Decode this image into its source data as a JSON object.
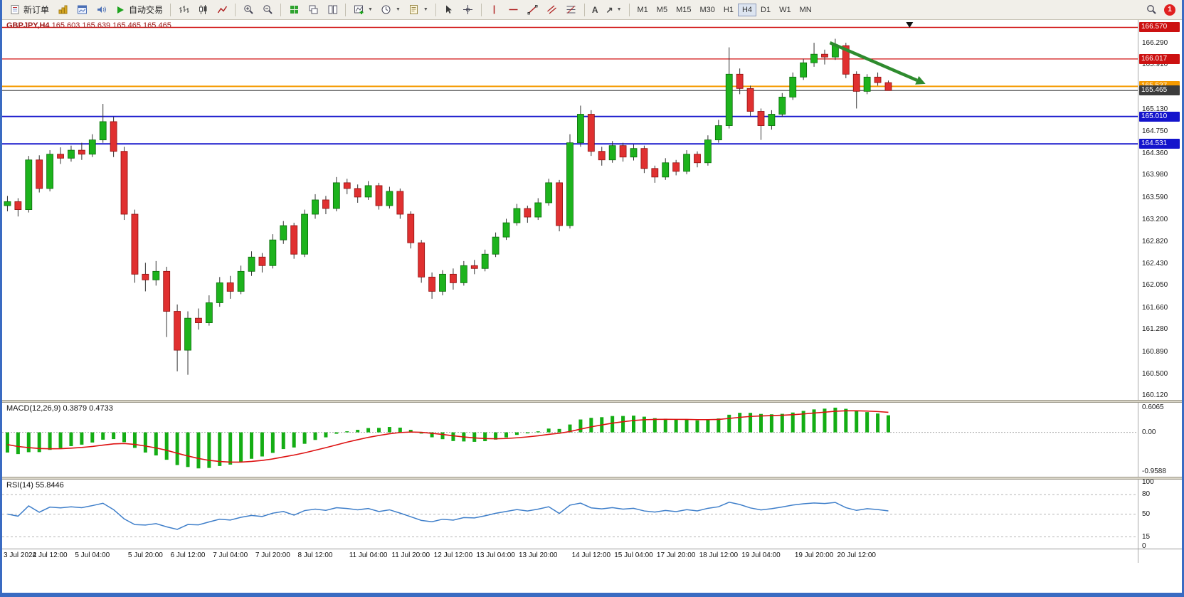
{
  "toolbar": {
    "new_order_label": "新订单",
    "autotrading_label": "自动交易",
    "timeframes": [
      "M1",
      "M5",
      "M15",
      "M30",
      "H1",
      "H4",
      "D1",
      "W1",
      "MN"
    ],
    "active_timeframe": "H4",
    "notification_count": "1"
  },
  "chart": {
    "symbol_period": "GBPJPY,H4",
    "ohlc_line": "165.603 165.639 165.465 165.465"
  },
  "chart_data": {
    "type": "candlestick",
    "symbol": "GBPJPY",
    "period": "H4",
    "ylim": [
      160.05,
      166.7
    ],
    "margin_slots": 23,
    "colors": {
      "up": "#1db31d",
      "up_stroke": "#0b6b0b",
      "down": "#e03030",
      "down_stroke": "#8f1010",
      "wick": "#333333"
    },
    "axis_ticks": [
      166.29,
      165.91,
      165.13,
      164.75,
      164.36,
      163.98,
      163.59,
      163.2,
      162.82,
      162.43,
      162.05,
      161.66,
      161.28,
      160.89,
      160.5,
      160.12
    ],
    "price_tags": [
      {
        "label": "166.570",
        "value": 166.57,
        "bg": "#cc1111"
      },
      {
        "label": "166.017",
        "value": 166.017,
        "bg": "#cc1111"
      },
      {
        "label": "165.537",
        "value": 165.537,
        "bg": "#f59a00"
      },
      {
        "label": "165.465",
        "value": 165.465,
        "bg": "#3c3c3c"
      },
      {
        "label": "165.010",
        "value": 165.01,
        "bg": "#1414cc"
      },
      {
        "label": "164.531",
        "value": 164.531,
        "bg": "#1414cc"
      }
    ],
    "hlines": [
      {
        "price": 166.57,
        "color": "#d01010",
        "width": 1.5
      },
      {
        "price": 166.017,
        "color": "#d01010",
        "width": 1.2
      },
      {
        "price": 165.537,
        "color": "#f59a00",
        "width": 2
      },
      {
        "price": 165.465,
        "color": "#3c3c3c",
        "width": 1.2
      },
      {
        "price": 165.01,
        "color": "#1414cc",
        "width": 1.8
      },
      {
        "price": 164.531,
        "color": "#1414cc",
        "width": 1.8
      }
    ],
    "trend_arrow": {
      "from_i": 77.5,
      "from_price": 166.3,
      "to_i": 86.5,
      "to_price": 165.58,
      "color": "#2e8b2e"
    },
    "top_marker": {
      "i": 85,
      "color": "#111111"
    },
    "candles": [
      [
        163.45,
        163.62,
        163.35,
        163.52
      ],
      [
        163.52,
        163.58,
        163.26,
        163.38
      ],
      [
        163.38,
        164.32,
        163.33,
        164.25
      ],
      [
        164.25,
        164.33,
        163.68,
        163.75
      ],
      [
        163.75,
        164.42,
        163.7,
        164.35
      ],
      [
        164.35,
        164.47,
        164.18,
        164.28
      ],
      [
        164.28,
        164.5,
        164.22,
        164.42
      ],
      [
        164.42,
        164.55,
        164.25,
        164.35
      ],
      [
        164.35,
        164.7,
        164.3,
        164.6
      ],
      [
        164.6,
        165.23,
        164.55,
        164.92
      ],
      [
        164.92,
        165.0,
        164.3,
        164.4
      ],
      [
        164.4,
        164.48,
        163.2,
        163.3
      ],
      [
        163.3,
        163.38,
        162.1,
        162.25
      ],
      [
        162.25,
        162.45,
        161.95,
        162.15
      ],
      [
        162.15,
        162.48,
        162.05,
        162.3
      ],
      [
        162.3,
        162.38,
        161.15,
        161.6
      ],
      [
        161.6,
        161.72,
        160.55,
        160.92
      ],
      [
        160.92,
        161.6,
        160.49,
        161.48
      ],
      [
        161.48,
        161.65,
        161.28,
        161.4
      ],
      [
        161.4,
        161.88,
        161.35,
        161.75
      ],
      [
        161.75,
        162.2,
        161.68,
        162.1
      ],
      [
        162.1,
        162.22,
        161.82,
        161.95
      ],
      [
        161.95,
        162.4,
        161.9,
        162.3
      ],
      [
        162.3,
        162.65,
        162.22,
        162.55
      ],
      [
        162.55,
        162.62,
        162.28,
        162.4
      ],
      [
        162.4,
        162.95,
        162.35,
        162.85
      ],
      [
        162.85,
        163.18,
        162.78,
        163.1
      ],
      [
        163.1,
        163.15,
        162.52,
        162.6
      ],
      [
        162.6,
        163.38,
        162.55,
        163.3
      ],
      [
        163.3,
        163.65,
        163.22,
        163.55
      ],
      [
        163.55,
        163.62,
        163.3,
        163.4
      ],
      [
        163.4,
        163.95,
        163.35,
        163.85
      ],
      [
        163.85,
        163.92,
        163.65,
        163.75
      ],
      [
        163.75,
        163.82,
        163.5,
        163.6
      ],
      [
        163.6,
        163.88,
        163.55,
        163.8
      ],
      [
        163.8,
        163.85,
        163.38,
        163.45
      ],
      [
        163.45,
        163.78,
        163.4,
        163.7
      ],
      [
        163.7,
        163.75,
        163.22,
        163.3
      ],
      [
        163.3,
        163.35,
        162.7,
        162.8
      ],
      [
        162.8,
        162.85,
        162.1,
        162.2
      ],
      [
        162.2,
        162.28,
        161.82,
        161.95
      ],
      [
        161.95,
        162.32,
        161.88,
        162.25
      ],
      [
        162.25,
        162.35,
        161.98,
        162.1
      ],
      [
        162.1,
        162.48,
        162.05,
        162.4
      ],
      [
        162.4,
        162.5,
        162.25,
        162.35
      ],
      [
        162.35,
        162.68,
        162.3,
        162.6
      ],
      [
        162.6,
        162.98,
        162.55,
        162.9
      ],
      [
        162.9,
        163.22,
        162.85,
        163.15
      ],
      [
        163.15,
        163.48,
        163.1,
        163.4
      ],
      [
        163.4,
        163.45,
        163.15,
        163.25
      ],
      [
        163.25,
        163.58,
        163.2,
        163.5
      ],
      [
        163.5,
        163.92,
        163.45,
        163.85
      ],
      [
        163.85,
        163.9,
        163.0,
        163.1
      ],
      [
        163.1,
        164.7,
        163.05,
        164.55
      ],
      [
        164.55,
        165.2,
        164.48,
        165.05
      ],
      [
        165.05,
        165.12,
        164.32,
        164.4
      ],
      [
        164.4,
        164.48,
        164.15,
        164.25
      ],
      [
        164.25,
        164.58,
        164.2,
        164.5
      ],
      [
        164.5,
        164.55,
        164.22,
        164.3
      ],
      [
        164.3,
        164.52,
        164.24,
        164.45
      ],
      [
        164.45,
        164.5,
        164.02,
        164.1
      ],
      [
        164.1,
        164.15,
        163.85,
        163.95
      ],
      [
        163.95,
        164.28,
        163.9,
        164.2
      ],
      [
        164.2,
        164.25,
        163.98,
        164.05
      ],
      [
        164.05,
        164.42,
        164.0,
        164.35
      ],
      [
        164.35,
        164.4,
        164.12,
        164.2
      ],
      [
        164.2,
        164.68,
        164.15,
        164.6
      ],
      [
        164.6,
        164.95,
        164.55,
        164.85
      ],
      [
        164.85,
        166.22,
        164.8,
        165.75
      ],
      [
        165.75,
        165.85,
        165.4,
        165.5
      ],
      [
        165.5,
        165.55,
        165.02,
        165.1
      ],
      [
        165.1,
        165.15,
        164.6,
        164.85
      ],
      [
        164.85,
        165.12,
        164.78,
        165.05
      ],
      [
        165.05,
        165.42,
        165.0,
        165.35
      ],
      [
        165.35,
        165.78,
        165.3,
        165.7
      ],
      [
        165.7,
        166.02,
        165.65,
        165.95
      ],
      [
        165.95,
        166.3,
        165.88,
        166.1
      ],
      [
        166.1,
        166.18,
        165.92,
        166.05
      ],
      [
        166.05,
        166.37,
        166.0,
        166.25
      ],
      [
        166.25,
        166.3,
        165.68,
        165.75
      ],
      [
        165.75,
        165.8,
        165.15,
        165.45
      ],
      [
        165.45,
        165.75,
        165.4,
        165.7
      ],
      [
        165.7,
        165.78,
        165.55,
        165.603
      ],
      [
        165.603,
        165.639,
        165.465,
        165.465
      ]
    ],
    "time_labels": [
      {
        "i": 0,
        "t": "3 Jul 2022"
      },
      {
        "i": 4,
        "t": "4 Jul 12:00"
      },
      {
        "i": 8,
        "t": "5 Jul 04:00"
      },
      {
        "i": 13,
        "t": "5 Jul 20:00"
      },
      {
        "i": 17,
        "t": "6 Jul 12:00"
      },
      {
        "i": 21,
        "t": "7 Jul 04:00"
      },
      {
        "i": 25,
        "t": "7 Jul 20:00"
      },
      {
        "i": 29,
        "t": "8 Jul 12:00"
      },
      {
        "i": 34,
        "t": "11 Jul 04:00"
      },
      {
        "i": 38,
        "t": "11 Jul 20:00"
      },
      {
        "i": 42,
        "t": "12 Jul 12:00"
      },
      {
        "i": 46,
        "t": "13 Jul 04:00"
      },
      {
        "i": 50,
        "t": "13 Jul 20:00"
      },
      {
        "i": 55,
        "t": "14 Jul 12:00"
      },
      {
        "i": 59,
        "t": "15 Jul 04:00"
      },
      {
        "i": 63,
        "t": "17 Jul 20:00"
      },
      {
        "i": 67,
        "t": "18 Jul 12:00"
      },
      {
        "i": 71,
        "t": "19 Jul 04:00"
      },
      {
        "i": 76,
        "t": "19 Jul 20:00"
      },
      {
        "i": 80,
        "t": "20 Jul 12:00"
      }
    ],
    "macd": {
      "label": "MACD(12,26,9)",
      "values": "0.3879 0.4733",
      "axis": [
        {
          "t": "0.6065",
          "v": 0.6065
        },
        {
          "t": "0.00",
          "v": 0
        },
        {
          "t": "-0.9588",
          "v": -0.9588
        }
      ],
      "ylim": [
        -1.08,
        0.72
      ],
      "bar_color": "#14ad14",
      "signal_color": "#dd1111"
    },
    "rsi": {
      "label": "RSI(14)",
      "value": "55.8446",
      "axis": [
        {
          "t": "100",
          "v": 100
        },
        {
          "t": "80",
          "v": 80
        },
        {
          "t": "50",
          "v": 50
        },
        {
          "t": "15",
          "v": 15
        },
        {
          "t": "0",
          "v": 0
        }
      ],
      "levels": [
        80,
        50,
        15
      ],
      "ylim": [
        -3,
        103
      ],
      "line_color": "#3f7fca"
    }
  }
}
